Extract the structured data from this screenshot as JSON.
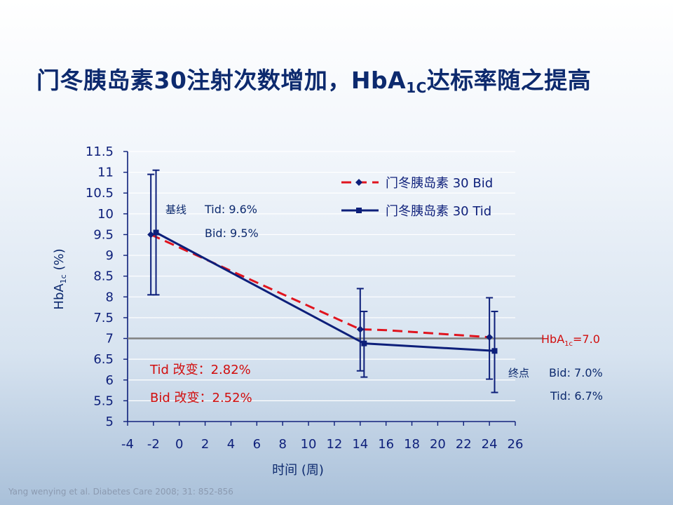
{
  "title": {
    "main": "门冬胰岛素30注射次数增加，HbA",
    "sub": "1C",
    "tail": "达标率随之提高"
  },
  "citation": "Yang wenying et al. Diabetes Care 2008; 31: 852-856",
  "chart_data": {
    "type": "line",
    "xlabel": "时间 (周)",
    "ylabel": "HbA1c (%)",
    "ylabel_main": "HbA",
    "ylabel_sub": "1c",
    "ylabel_tail": " (%)",
    "xlim": [
      -4,
      26
    ],
    "ylim": [
      5,
      11.5
    ],
    "xticks": [
      -4,
      -2,
      0,
      2,
      4,
      6,
      8,
      10,
      12,
      14,
      16,
      18,
      20,
      22,
      24,
      26
    ],
    "yticks": [
      5,
      5.5,
      6,
      6.5,
      7,
      7.5,
      8,
      8.5,
      9,
      9.5,
      10,
      10.5,
      11,
      11.5
    ],
    "grid": "horizontal",
    "legend_position": "top-right",
    "series": [
      {
        "name": "门冬胰岛素 30  Bid",
        "style": "dashed",
        "marker": "diamond",
        "color": "#e0141e",
        "points": [
          {
            "x": -2.2,
            "y": 9.5,
            "err_low": 8.05,
            "err_high": 10.95
          },
          {
            "x": 14,
            "y": 7.22,
            "err_low": 6.22,
            "err_high": 8.2
          },
          {
            "x": 16,
            "y": 7.2
          },
          {
            "x": 24,
            "y": 7.03,
            "err_low": 6.02,
            "err_high": 7.98
          }
        ]
      },
      {
        "name": "门冬胰岛素 30  Tid",
        "style": "solid",
        "marker": "square",
        "color": "#0d1f7a",
        "points": [
          {
            "x": -1.8,
            "y": 9.55,
            "err_low": 8.05,
            "err_high": 11.05
          },
          {
            "x": 14.3,
            "y": 6.88,
            "err_low": 6.07,
            "err_high": 7.65
          },
          {
            "x": 24.4,
            "y": 6.7,
            "err_low": 5.7,
            "err_high": 7.65
          }
        ]
      }
    ],
    "reference_line": {
      "y": 7.0,
      "label_main": "HbA",
      "label_sub": "1c",
      "label_tail": "=7.0",
      "color": "#808080"
    },
    "annotations": {
      "baseline_label": "基线",
      "baseline_tid": "Tid: 9.6%",
      "baseline_bid": "Bid: 9.5%",
      "change_tid": "Tid 改变：2.82%",
      "change_bid": "Bid 改变：2.52%",
      "end_label": "终点",
      "end_bid": "Bid: 7.0%",
      "end_tid": "Tid: 6.7%"
    }
  }
}
